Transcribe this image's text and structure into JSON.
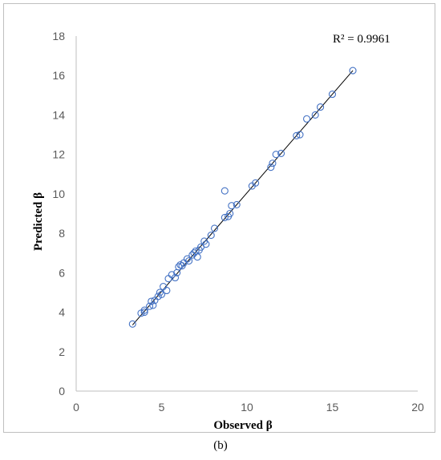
{
  "chart_data": {
    "type": "scatter",
    "title": "",
    "xlabel": "Observed β",
    "ylabel": "Predicted β",
    "xlim": [
      0,
      20
    ],
    "ylim": [
      0,
      18
    ],
    "xticks": [
      "0",
      "5",
      "10",
      "15",
      "20"
    ],
    "yticks": [
      "0",
      "2",
      "4",
      "6",
      "8",
      "10",
      "12",
      "14",
      "16",
      "18"
    ],
    "grid": false,
    "annotation": "R² = 0.9961",
    "trendline": {
      "x": [
        3.3,
        16.2
      ],
      "y": [
        3.35,
        16.25
      ]
    },
    "marker_color": "#4472c4",
    "series": [
      {
        "x": [
          3.3,
          3.8,
          4.0,
          4.0,
          4.3,
          4.4,
          4.5,
          4.6,
          4.8,
          4.9,
          5.0,
          5.1,
          5.3,
          5.4,
          5.6,
          5.8,
          5.9,
          6.0,
          6.1,
          6.2,
          6.3,
          6.5,
          6.6,
          6.8,
          6.9,
          7.0,
          7.1,
          7.2,
          7.3,
          7.5,
          7.6,
          7.9,
          8.1,
          8.7,
          8.7,
          8.9,
          9.0,
          9.1,
          9.4,
          10.3,
          10.5,
          11.4,
          11.5,
          11.7,
          12.0,
          12.9,
          13.1,
          13.5,
          14.0,
          14.3,
          15.0,
          16.2
        ],
        "y": [
          3.4,
          3.95,
          4.0,
          4.1,
          4.3,
          4.55,
          4.35,
          4.6,
          4.8,
          5.0,
          4.9,
          5.3,
          5.1,
          5.7,
          5.9,
          5.75,
          6.0,
          6.3,
          6.4,
          6.35,
          6.5,
          6.7,
          6.6,
          6.9,
          7.0,
          7.1,
          6.8,
          7.15,
          7.3,
          7.6,
          7.45,
          7.9,
          8.25,
          8.8,
          10.15,
          8.85,
          9.0,
          9.4,
          9.45,
          10.4,
          10.55,
          11.35,
          11.55,
          12.0,
          12.05,
          12.95,
          13.0,
          13.8,
          14.0,
          14.4,
          15.05,
          16.25
        ]
      }
    ]
  },
  "panel_label": "(b)"
}
